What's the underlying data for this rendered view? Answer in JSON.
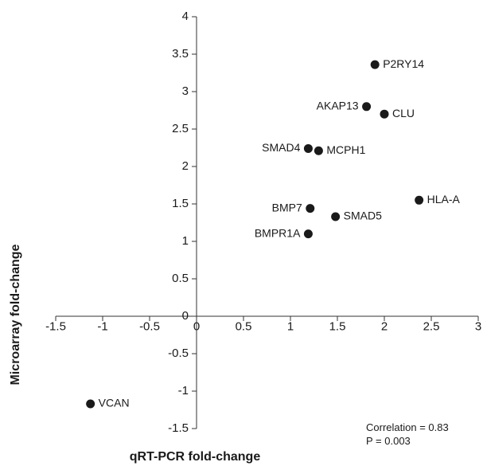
{
  "chart_data": {
    "type": "scatter",
    "title": "",
    "xlabel": "qRT-PCR fold-change",
    "ylabel": "Microarray fold-change",
    "xlim": [
      -1.5,
      3
    ],
    "ylim": [
      -1.5,
      4
    ],
    "x_ticks": [
      "-1.5",
      "-1",
      "-0.5",
      "0",
      "0.5",
      "1",
      "1.5",
      "2",
      "2.5",
      "3"
    ],
    "y_ticks": [
      "-1.5",
      "-1",
      "-0.5",
      "0",
      "0.5",
      "1",
      "1.5",
      "2",
      "2.5",
      "3",
      "3.5",
      "4"
    ],
    "grid": false,
    "points": [
      {
        "label": "P2RY14",
        "x": 1.9,
        "y": 3.36
      },
      {
        "label": "AKAP13",
        "x": 1.81,
        "y": 2.8
      },
      {
        "label": "CLU",
        "x": 2.0,
        "y": 2.7
      },
      {
        "label": "SMAD4",
        "x": 1.19,
        "y": 2.24
      },
      {
        "label": "MCPH1",
        "x": 1.3,
        "y": 2.21
      },
      {
        "label": "HLA-A",
        "x": 2.37,
        "y": 1.55
      },
      {
        "label": "BMP7",
        "x": 1.21,
        "y": 1.44
      },
      {
        "label": "SMAD5",
        "x": 1.48,
        "y": 1.33
      },
      {
        "label": "BMPR1A",
        "x": 1.19,
        "y": 1.1
      },
      {
        "label": "VCAN",
        "x": -1.13,
        "y": -1.17
      }
    ],
    "annotations": [
      "Correlation = 0.83",
      "P = 0.003"
    ],
    "colors": {
      "marker": "#1a1a1a",
      "axis": "#333333"
    }
  }
}
